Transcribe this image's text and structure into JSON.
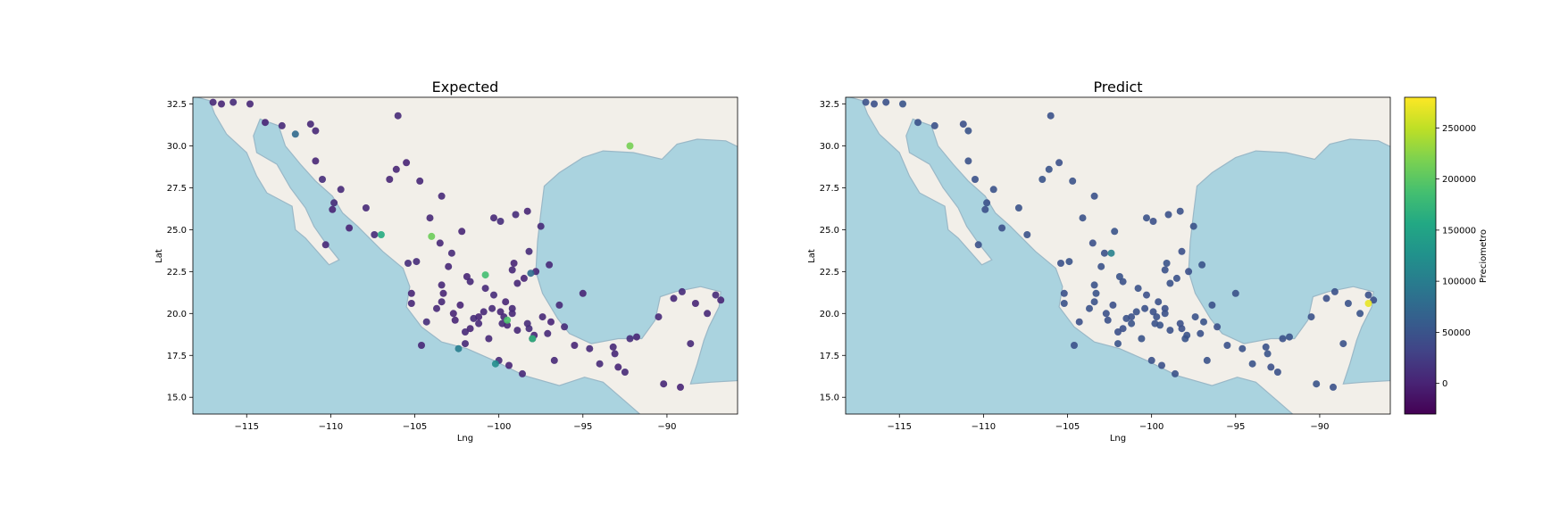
{
  "chart_data": [
    {
      "type": "scatter",
      "title": "Expected",
      "xlabel": "Lng",
      "ylabel": "Lat",
      "xlim": [
        -118.2,
        -85.8
      ],
      "ylim": [
        14.0,
        32.9
      ],
      "xticks": [
        -115,
        -110,
        -105,
        -100,
        -95,
        -90
      ],
      "xtick_labels": [
        "−115",
        "−110",
        "−105",
        "−100",
        "−95",
        "−90"
      ],
      "yticks": [
        15.0,
        17.5,
        20.0,
        22.5,
        25.0,
        27.5,
        30.0,
        32.5
      ],
      "ytick_labels": [
        "15.0",
        "17.5",
        "20.0",
        "22.5",
        "25.0",
        "27.5",
        "30.0",
        "32.5"
      ],
      "basemap": "OpenStreetMap tiles",
      "series": [
        {
          "color_by": "Preciometro",
          "x": [
            -117.0,
            -116.5,
            -115.8,
            -114.8,
            -113.9,
            -112.9,
            -111.2,
            -110.9,
            -110.5,
            -110.9,
            -109.4,
            -109.9,
            -110.3,
            -107.4,
            -106.1,
            -106.0,
            -105.5,
            -104.7,
            -103.4,
            -102.2,
            -100.3,
            -99.9,
            -98.3,
            -97.5,
            -99.1,
            -99.2,
            -98.2,
            -98.9,
            -101.7,
            -103.3,
            -103.4,
            -102.3,
            -100.4,
            -100.9,
            -101.2,
            -102.6,
            -104.3,
            -103.4,
            -105.2,
            -104.9,
            -105.2,
            -102.0,
            -101.2,
            -99.8,
            -99.5,
            -98.9,
            -98.2,
            -97.9,
            -97.1,
            -96.9,
            -96.7,
            -96.1,
            -95.5,
            -94.6,
            -93.1,
            -92.5,
            -92.9,
            -93.2,
            -92.2,
            -91.8,
            -90.5,
            -89.6,
            -89.1,
            -88.3,
            -87.6,
            -87.1,
            -86.8,
            -88.6,
            -89.2,
            -90.2,
            -97.4,
            -98.3,
            -99.6,
            -100.8,
            -101.9,
            -102.8,
            -103.5,
            -104.1,
            -105.4,
            -106.5,
            -107.9,
            -108.9,
            -109.8,
            -103.0,
            -102.0,
            -100.0,
            -99.4,
            -98.6,
            -99.9,
            -100.6,
            -101.5,
            -97.8,
            -96.4,
            -95.0,
            -94.0,
            -99.0,
            -101.7,
            -103.7,
            -104.6,
            -97.0,
            -98.5,
            -100.3,
            -102.7,
            -99.7,
            -98.0,
            -99.2,
            -99.2,
            -102.4,
            -112.1,
            -104.0,
            -98.1,
            -92.2,
            -99.5,
            -107.0,
            -100.8,
            -98.0,
            -100.2
          ],
          "y": [
            32.6,
            32.5,
            32.6,
            32.5,
            31.4,
            31.2,
            31.3,
            29.1,
            28.0,
            30.9,
            27.4,
            26.2,
            24.1,
            24.7,
            28.6,
            31.8,
            29.0,
            27.9,
            27.0,
            24.9,
            25.7,
            25.5,
            26.1,
            25.2,
            23.0,
            22.6,
            23.7,
            21.8,
            21.9,
            21.2,
            20.7,
            20.5,
            20.3,
            20.1,
            19.4,
            19.6,
            19.5,
            21.7,
            21.2,
            23.1,
            20.6,
            18.9,
            19.8,
            19.4,
            19.3,
            19.0,
            19.1,
            18.7,
            18.8,
            19.5,
            17.2,
            19.2,
            18.1,
            17.9,
            17.6,
            16.5,
            16.8,
            18.0,
            18.5,
            18.6,
            19.8,
            20.9,
            21.3,
            20.6,
            20.0,
            21.1,
            20.8,
            18.2,
            15.6,
            15.8,
            19.8,
            19.4,
            20.7,
            21.5,
            22.2,
            23.6,
            24.2,
            25.7,
            23.0,
            28.0,
            26.3,
            25.1,
            26.6,
            22.8,
            18.2,
            17.2,
            16.9,
            16.4,
            20.1,
            18.5,
            19.7,
            22.5,
            20.5,
            21.2,
            17.0,
            25.9,
            19.1,
            20.3,
            18.1,
            22.9,
            22.1,
            21.1,
            20.0,
            19.8,
            18.5,
            20.0,
            20.3,
            17.9,
            30.7,
            24.6,
            22.4,
            30.0,
            19.6,
            24.7,
            22.3,
            18.5,
            17.0
          ],
          "values": [
            5000,
            3000,
            8000,
            4000,
            2000,
            6000,
            5000,
            3000,
            9000,
            4000,
            6000,
            2000,
            5000,
            8000,
            3000,
            7000,
            1000,
            4000,
            6000,
            3000,
            5000,
            9000,
            3000,
            7000,
            2000,
            5000,
            8000,
            4000,
            6000,
            3000,
            5000,
            1000,
            7000,
            4000,
            6000,
            2000,
            9000,
            5000,
            3000,
            8000,
            4000,
            6000,
            2000,
            7000,
            3000,
            5000,
            9000,
            4000,
            6000,
            1000,
            5000,
            8000,
            3000,
            6000,
            4000,
            7000,
            2000,
            5000,
            9000,
            3000,
            6000,
            4000,
            8000,
            2000,
            5000,
            7000,
            3000,
            6000,
            1000,
            4000,
            5000,
            8000,
            3000,
            6000,
            2000,
            7000,
            4000,
            5000,
            9000,
            3000,
            6000,
            1000,
            8000,
            4000,
            5000,
            7000,
            2000,
            6000,
            3000,
            5000,
            8000,
            4000,
            6000,
            2000,
            7000,
            9000,
            3000,
            5000,
            4000,
            6000,
            2000,
            8000,
            3000,
            5000,
            7000,
            4000,
            6000,
            100000,
            75000,
            210000,
            80000,
            215000,
            190000,
            160000,
            185000,
            170000,
            120000
          ]
        }
      ]
    },
    {
      "type": "scatter",
      "title": "Predict",
      "xlabel": "Lng",
      "ylabel": "Lat",
      "xlim": [
        -118.2,
        -85.8
      ],
      "ylim": [
        14.0,
        32.9
      ],
      "xticks": [
        -115,
        -110,
        -105,
        -100,
        -95,
        -90
      ],
      "xtick_labels": [
        "−115",
        "−110",
        "−105",
        "−100",
        "−95",
        "−90"
      ],
      "yticks": [
        15.0,
        17.5,
        20.0,
        22.5,
        25.0,
        27.5,
        30.0,
        32.5
      ],
      "ytick_labels": [
        "15.0",
        "17.5",
        "20.0",
        "22.5",
        "25.0",
        "27.5",
        "30.0",
        "32.5"
      ],
      "basemap": "OpenStreetMap tiles",
      "colorbar": {
        "label": "Preciometro",
        "min": -30000,
        "max": 280000,
        "ticks": [
          0,
          50000,
          100000,
          150000,
          200000,
          250000
        ],
        "tick_labels": [
          "0",
          "50000",
          "100000",
          "150000",
          "200000",
          "250000"
        ],
        "colormap": "viridis"
      },
      "series": [
        {
          "color_by": "Preciometro",
          "x": [
            -117.0,
            -116.5,
            -115.8,
            -114.8,
            -113.9,
            -112.9,
            -111.2,
            -110.9,
            -110.5,
            -110.9,
            -109.4,
            -109.9,
            -110.3,
            -107.4,
            -106.1,
            -106.0,
            -105.5,
            -104.7,
            -103.4,
            -102.2,
            -100.3,
            -99.9,
            -98.3,
            -97.5,
            -99.1,
            -99.2,
            -98.2,
            -98.9,
            -101.7,
            -103.3,
            -103.4,
            -102.3,
            -100.4,
            -100.9,
            -101.2,
            -102.6,
            -104.3,
            -103.4,
            -105.2,
            -104.9,
            -105.2,
            -102.0,
            -101.2,
            -99.8,
            -99.5,
            -98.9,
            -98.2,
            -97.9,
            -97.1,
            -96.9,
            -96.7,
            -96.1,
            -95.5,
            -94.6,
            -93.1,
            -92.5,
            -92.9,
            -93.2,
            -92.2,
            -91.8,
            -90.5,
            -89.6,
            -89.1,
            -88.3,
            -87.6,
            -87.1,
            -86.8,
            -88.6,
            -89.2,
            -90.2,
            -97.4,
            -98.3,
            -99.6,
            -100.8,
            -101.9,
            -102.8,
            -103.5,
            -104.1,
            -105.4,
            -106.5,
            -107.9,
            -108.9,
            -109.8,
            -103.0,
            -102.0,
            -100.0,
            -99.4,
            -98.6,
            -99.9,
            -100.6,
            -101.5,
            -97.8,
            -96.4,
            -95.0,
            -94.0,
            -99.0,
            -101.7,
            -103.7,
            -104.6,
            -97.0,
            -98.5,
            -100.3,
            -102.7,
            -99.7,
            -98.0,
            -99.2,
            -99.2,
            -102.4,
            -87.1
          ],
          "y": [
            32.6,
            32.5,
            32.6,
            32.5,
            31.4,
            31.2,
            31.3,
            29.1,
            28.0,
            30.9,
            27.4,
            26.2,
            24.1,
            24.7,
            28.6,
            31.8,
            29.0,
            27.9,
            27.0,
            24.9,
            25.7,
            25.5,
            26.1,
            25.2,
            23.0,
            22.6,
            23.7,
            21.8,
            21.9,
            21.2,
            20.7,
            20.5,
            20.3,
            20.1,
            19.4,
            19.6,
            19.5,
            21.7,
            21.2,
            23.1,
            20.6,
            18.9,
            19.8,
            19.4,
            19.3,
            19.0,
            19.1,
            18.7,
            18.8,
            19.5,
            17.2,
            19.2,
            18.1,
            17.9,
            17.6,
            16.5,
            16.8,
            18.0,
            18.5,
            18.6,
            19.8,
            20.9,
            21.3,
            20.6,
            20.0,
            21.1,
            20.8,
            18.2,
            15.6,
            15.8,
            19.8,
            19.4,
            20.7,
            21.5,
            22.2,
            23.6,
            24.2,
            25.7,
            23.0,
            28.0,
            26.3,
            25.1,
            26.6,
            22.8,
            18.2,
            17.2,
            16.9,
            16.4,
            20.1,
            18.5,
            19.7,
            22.5,
            20.5,
            21.2,
            17.0,
            25.9,
            19.1,
            20.3,
            18.1,
            22.9,
            22.1,
            21.1,
            20.0,
            19.8,
            18.5,
            20.0,
            20.3,
            23.6,
            20.6
          ],
          "values": [
            48000,
            46000,
            47000,
            49000,
            48000,
            47000,
            46000,
            48000,
            47000,
            49000,
            48000,
            46000,
            47000,
            48000,
            49000,
            47000,
            46000,
            48000,
            47000,
            49000,
            48000,
            46000,
            47000,
            48000,
            49000,
            47000,
            46000,
            48000,
            47000,
            49000,
            48000,
            46000,
            47000,
            48000,
            49000,
            47000,
            46000,
            48000,
            47000,
            49000,
            48000,
            46000,
            47000,
            48000,
            49000,
            47000,
            46000,
            48000,
            47000,
            49000,
            48000,
            46000,
            47000,
            48000,
            49000,
            47000,
            46000,
            48000,
            47000,
            49000,
            48000,
            46000,
            47000,
            48000,
            49000,
            47000,
            46000,
            48000,
            47000,
            49000,
            48000,
            46000,
            47000,
            48000,
            49000,
            47000,
            46000,
            48000,
            47000,
            49000,
            48000,
            46000,
            47000,
            48000,
            49000,
            47000,
            46000,
            48000,
            47000,
            49000,
            48000,
            46000,
            47000,
            48000,
            49000,
            47000,
            46000,
            48000,
            47000,
            49000,
            48000,
            46000,
            47000,
            48000,
            49000,
            47000,
            46000,
            105000,
            270000
          ]
        }
      ]
    }
  ]
}
